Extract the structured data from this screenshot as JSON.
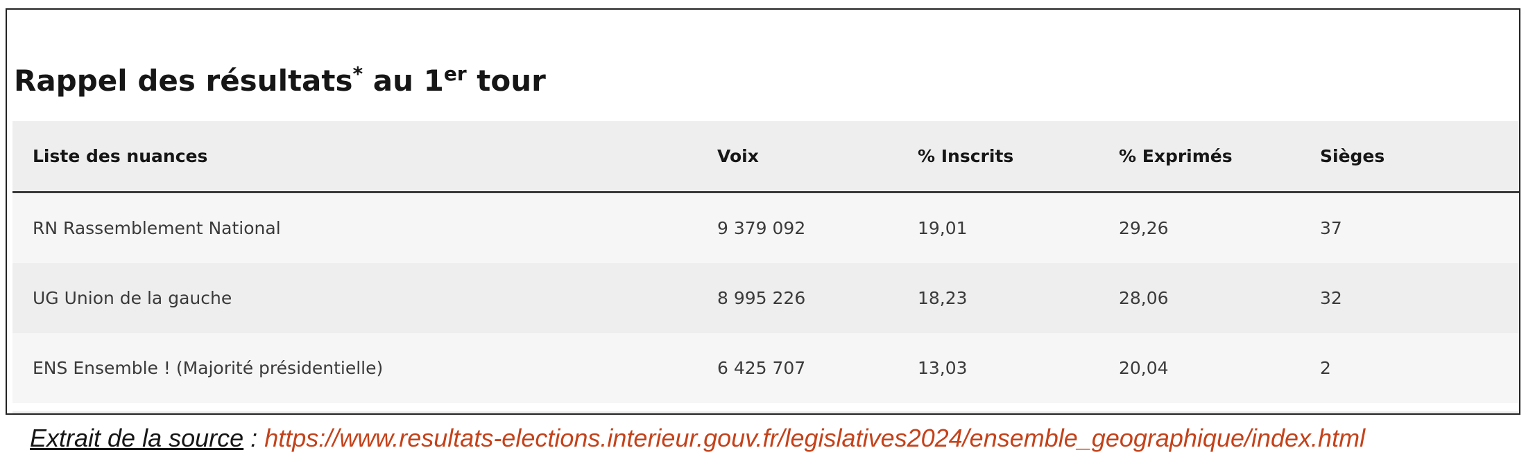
{
  "header": {
    "title": {
      "before": "Rappel des résultats",
      "mark": "*",
      "middle": "au 1",
      "suffix": "er",
      "after": "tour"
    }
  },
  "table": {
    "columns": [
      "Liste des nuances",
      "Voix",
      "% Inscrits",
      "% Exprimés",
      "Sièges"
    ],
    "rows": [
      [
        "RN Rassemblement National",
        "9 379 092",
        "19,01",
        "29,26",
        "37"
      ],
      [
        "UG Union de la gauche",
        "8 995 226",
        "18,23",
        "28,06",
        "32"
      ],
      [
        "ENS Ensemble ! (Majorité présidentielle)",
        "6 425 707",
        "13,03",
        "20,04",
        "2"
      ]
    ]
  },
  "footer": {
    "label": "Extrait de la source",
    "separator": ":",
    "url": "https://www.resultats-elections.interieur.gouv.fr/legislatives2024/ensemble_geographique/index.html"
  }
}
